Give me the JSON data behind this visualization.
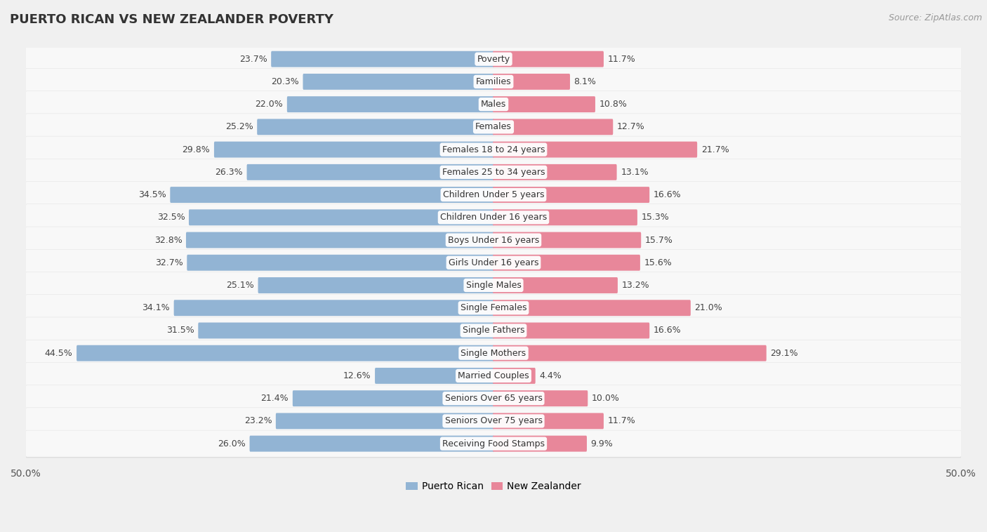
{
  "title": "PUERTO RICAN VS NEW ZEALANDER POVERTY",
  "source": "Source: ZipAtlas.com",
  "categories": [
    "Poverty",
    "Families",
    "Males",
    "Females",
    "Females 18 to 24 years",
    "Females 25 to 34 years",
    "Children Under 5 years",
    "Children Under 16 years",
    "Boys Under 16 years",
    "Girls Under 16 years",
    "Single Males",
    "Single Females",
    "Single Fathers",
    "Single Mothers",
    "Married Couples",
    "Seniors Over 65 years",
    "Seniors Over 75 years",
    "Receiving Food Stamps"
  ],
  "puerto_rican": [
    23.7,
    20.3,
    22.0,
    25.2,
    29.8,
    26.3,
    34.5,
    32.5,
    32.8,
    32.7,
    25.1,
    34.1,
    31.5,
    44.5,
    12.6,
    21.4,
    23.2,
    26.0
  ],
  "new_zealander": [
    11.7,
    8.1,
    10.8,
    12.7,
    21.7,
    13.1,
    16.6,
    15.3,
    15.7,
    15.6,
    13.2,
    21.0,
    16.6,
    29.1,
    4.4,
    10.0,
    11.7,
    9.9
  ],
  "puerto_rican_color": "#92b4d4",
  "new_zealander_color": "#e8879a",
  "background_color": "#f0f0f0",
  "row_light": "#e8e8e8",
  "row_dark": "#d8d8d8",
  "bar_bg_color": "#ffffff",
  "axis_max": 50.0,
  "label_fontsize": 9.0,
  "value_fontsize": 9.0,
  "title_fontsize": 13,
  "source_fontsize": 9,
  "legend_labels": [
    "Puerto Rican",
    "New Zealander"
  ]
}
